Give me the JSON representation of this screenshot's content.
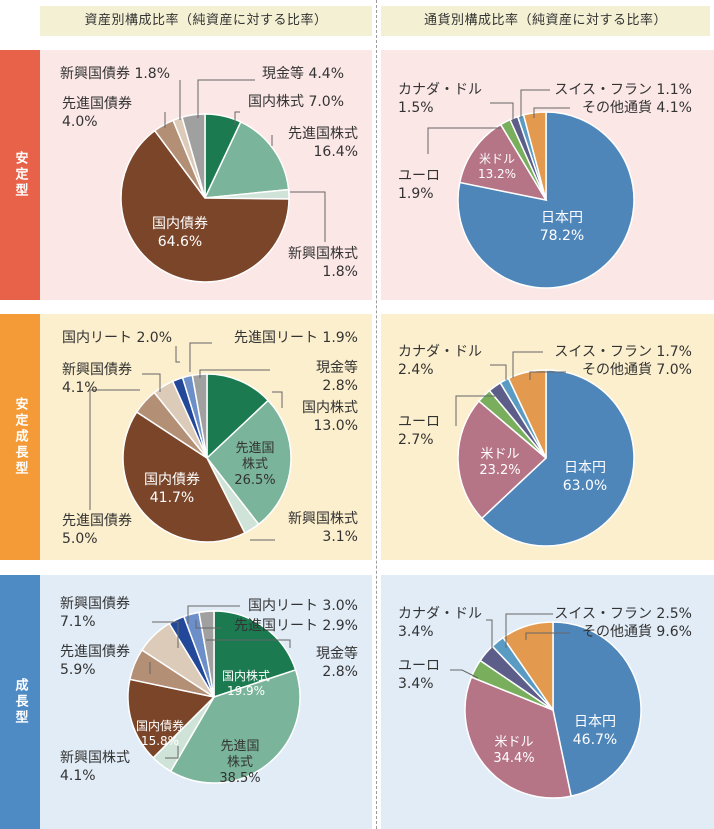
{
  "headers": {
    "asset": "資産別構成比率（純資産に対する比率）",
    "currency": "通貨別構成比率（純資産に対する比率）"
  },
  "colors": {
    "header_bg": "#f4f0d4",
    "row_bg": [
      "#fbe7e6",
      "#fcefcd",
      "#e1ecf7"
    ],
    "side_label_bg": [
      "#e8624a",
      "#f49a37",
      "#4e8bc4"
    ],
    "domestic_stock": "#1b7a50",
    "developed_stock": "#7ab49a",
    "emerging_stock": "#cfe3d8",
    "domestic_bond": "#7a4529",
    "developed_bond": "#b38f76",
    "emerging_bond": "#dccbb8",
    "domestic_reit": "#23489a",
    "developed_reit": "#6d8fc9",
    "cash": "#a0a0a0",
    "jpy": "#4f86ba",
    "usd": "#b67487",
    "eur": "#79ae5d",
    "cad": "#5d5d8a",
    "chf": "#5a9bc4",
    "other_currency": "#e39a4f"
  },
  "chart_data": [
    {
      "type": "pie",
      "row_label": "安定型",
      "panel": "asset",
      "slices": [
        {
          "label": "国内株式",
          "value": 7.0,
          "text": "国内株式 7.0%"
        },
        {
          "label": "先進国株式",
          "value": 16.4,
          "text": "先進国株式\n16.4%"
        },
        {
          "label": "新興国株式",
          "value": 1.8,
          "text": "新興国株式\n1.8%"
        },
        {
          "label": "国内債券",
          "value": 64.6,
          "text": "国内債券\n64.6%"
        },
        {
          "label": "先進国債券",
          "value": 4.0,
          "text": "先進国債券\n4.0%"
        },
        {
          "label": "新興国債券",
          "value": 1.8,
          "text": "新興国債券 1.8%"
        },
        {
          "label": "現金等",
          "value": 4.4,
          "text": "現金等 4.4%"
        }
      ]
    },
    {
      "type": "pie",
      "row_label": "安定型",
      "panel": "currency",
      "slices": [
        {
          "label": "日本円",
          "value": 78.2,
          "text": "日本円\n78.2%"
        },
        {
          "label": "米ドル",
          "value": 13.2,
          "text": "米ドル\n13.2%"
        },
        {
          "label": "ユーロ",
          "value": 1.9,
          "text": "ユーロ\n1.9%"
        },
        {
          "label": "カナダ・ドル",
          "value": 1.5,
          "text": "カナダ・ドル\n1.5%"
        },
        {
          "label": "スイス・フラン",
          "value": 1.1,
          "text": "スイス・フラン 1.1%"
        },
        {
          "label": "その他通貨",
          "value": 4.1,
          "text": "その他通貨 4.1%"
        }
      ]
    },
    {
      "type": "pie",
      "row_label": "安定成長型",
      "panel": "asset",
      "slices": [
        {
          "label": "国内株式",
          "value": 13.0,
          "text": "国内株式\n13.0%"
        },
        {
          "label": "先進国株式",
          "value": 26.5,
          "text": "先進国\n株式\n26.5%"
        },
        {
          "label": "新興国株式",
          "value": 3.1,
          "text": "新興国株式\n3.1%"
        },
        {
          "label": "国内債券",
          "value": 41.7,
          "text": "国内債券\n41.7%"
        },
        {
          "label": "先進国債券",
          "value": 5.0,
          "text": "先進国債券\n5.0%"
        },
        {
          "label": "新興国債券",
          "value": 4.1,
          "text": "新興国債券\n4.1%"
        },
        {
          "label": "国内リート",
          "value": 2.0,
          "text": "国内リート 2.0%"
        },
        {
          "label": "先進国リート",
          "value": 1.9,
          "text": "先進国リート 1.9%"
        },
        {
          "label": "現金等",
          "value": 2.8,
          "text": "現金等\n2.8%"
        }
      ]
    },
    {
      "type": "pie",
      "row_label": "安定成長型",
      "panel": "currency",
      "slices": [
        {
          "label": "日本円",
          "value": 63.0,
          "text": "日本円\n63.0%"
        },
        {
          "label": "米ドル",
          "value": 23.2,
          "text": "米ドル\n23.2%"
        },
        {
          "label": "ユーロ",
          "value": 2.7,
          "text": "ユーロ\n2.7%"
        },
        {
          "label": "カナダ・ドル",
          "value": 2.4,
          "text": "カナダ・ドル\n2.4%"
        },
        {
          "label": "スイス・フラン",
          "value": 1.7,
          "text": "スイス・フラン 1.7%"
        },
        {
          "label": "その他通貨",
          "value": 7.0,
          "text": "その他通貨 7.0%"
        }
      ]
    },
    {
      "type": "pie",
      "row_label": "成長型",
      "panel": "asset",
      "slices": [
        {
          "label": "国内株式",
          "value": 19.9,
          "text": "国内株式\n19.9%"
        },
        {
          "label": "先進国株式",
          "value": 38.5,
          "text": "先進国\n株式\n38.5%"
        },
        {
          "label": "新興国株式",
          "value": 4.1,
          "text": "新興国株式\n4.1%"
        },
        {
          "label": "国内債券",
          "value": 15.8,
          "text": "国内債券\n15.8%"
        },
        {
          "label": "先進国債券",
          "value": 5.9,
          "text": "先進国債券\n5.9%"
        },
        {
          "label": "新興国債券",
          "value": 7.1,
          "text": "新興国債券\n7.1%"
        },
        {
          "label": "国内リート",
          "value": 3.0,
          "text": "国内リート 3.0%"
        },
        {
          "label": "先進国リート",
          "value": 2.9,
          "text": "先進国リート 2.9%"
        },
        {
          "label": "現金等",
          "value": 2.8,
          "text": "現金等\n2.8%"
        }
      ]
    },
    {
      "type": "pie",
      "row_label": "成長型",
      "panel": "currency",
      "slices": [
        {
          "label": "日本円",
          "value": 46.7,
          "text": "日本円\n46.7%"
        },
        {
          "label": "米ドル",
          "value": 34.4,
          "text": "米ドル\n34.4%"
        },
        {
          "label": "ユーロ",
          "value": 3.4,
          "text": "ユーロ\n3.4%"
        },
        {
          "label": "カナダ・ドル",
          "value": 3.4,
          "text": "カナダ・ドル\n3.4%"
        },
        {
          "label": "スイス・フラン",
          "value": 2.5,
          "text": "スイス・フラン 2.5%"
        },
        {
          "label": "その他通貨",
          "value": 9.6,
          "text": "その他通貨 9.6%"
        }
      ]
    }
  ]
}
